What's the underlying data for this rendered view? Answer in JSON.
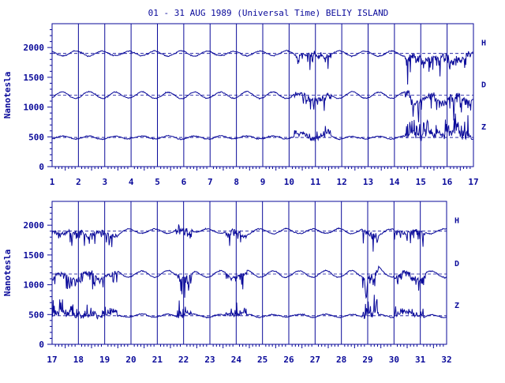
{
  "title": "01 - 31 AUG 1989 (Universal Time) BELIY ISLAND",
  "colors": {
    "ink": "#0a0a9a",
    "background": "#ffffff"
  },
  "chart_data": [
    {
      "type": "line",
      "panel": "top",
      "ylabel": "Nanotesla",
      "ylim": [
        0,
        2400
      ],
      "yticks": [
        0,
        500,
        1000,
        1500,
        2000
      ],
      "xlim": [
        1,
        17
      ],
      "xticks": [
        1,
        2,
        3,
        4,
        5,
        6,
        7,
        8,
        9,
        10,
        11,
        12,
        13,
        14,
        15,
        16,
        17
      ],
      "grid": "vertical at each day",
      "series": [
        {
          "name": "H",
          "baseline": 1900
        },
        {
          "name": "D",
          "baseline": 1200
        },
        {
          "name": "Z",
          "baseline": 490
        }
      ]
    },
    {
      "type": "line",
      "panel": "bottom",
      "ylabel": "Nanotesla",
      "ylim": [
        0,
        2400
      ],
      "yticks": [
        0,
        500,
        1000,
        1500,
        2000
      ],
      "xlim": [
        17,
        32
      ],
      "xticks": [
        17,
        18,
        19,
        20,
        21,
        22,
        23,
        24,
        25,
        26,
        27,
        28,
        29,
        30,
        31,
        32
      ],
      "grid": "vertical at each day",
      "series": [
        {
          "name": "H",
          "baseline": 1900
        },
        {
          "name": "D",
          "baseline": 1180
        },
        {
          "name": "Z",
          "baseline": 480
        }
      ]
    }
  ]
}
